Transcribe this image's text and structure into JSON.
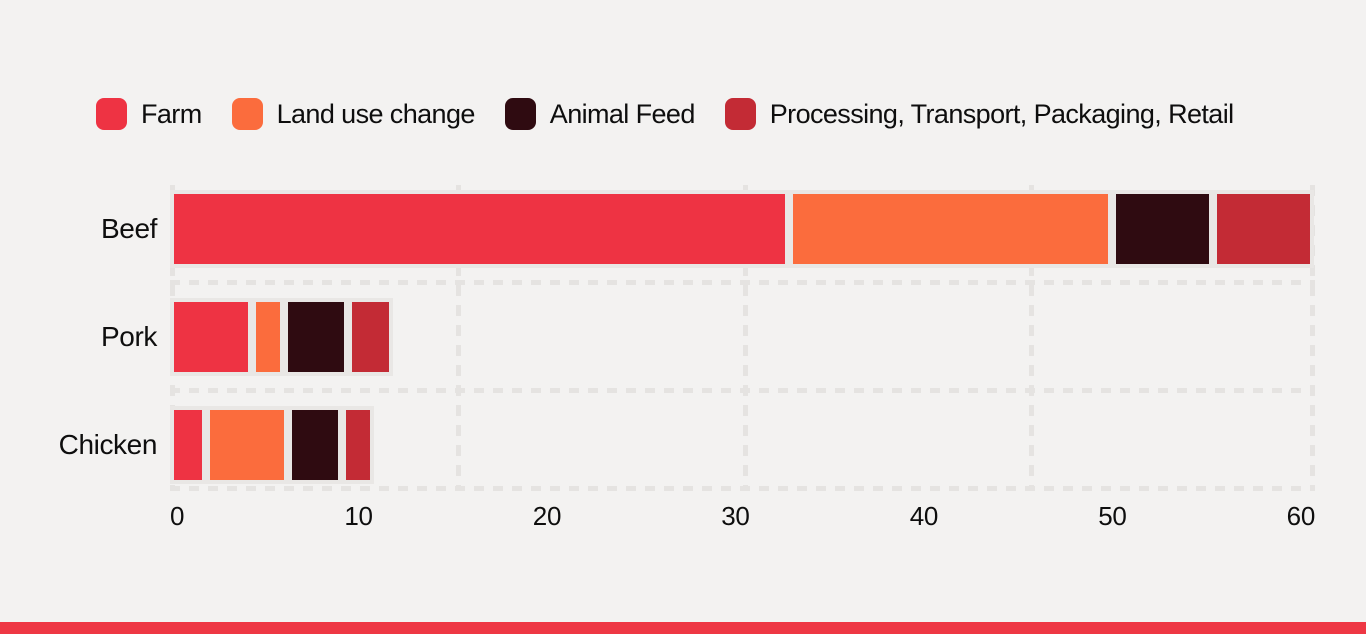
{
  "colors": {
    "background": "#F3F2F1",
    "bar_track": "#E9E7E5",
    "gridline": "#E5E3E1",
    "text": "#0E0E0E",
    "bottom_stripe": "#EE3744"
  },
  "legend": {
    "items": [
      {
        "label": "Farm",
        "color": "#EE3343"
      },
      {
        "label": "Land use change",
        "color": "#FB6C3D"
      },
      {
        "label": "Animal Feed",
        "color": "#2F0B11"
      },
      {
        "label": "Processing, Transport, Packaging, Retail",
        "color": "#C32B35"
      }
    ]
  },
  "chart_data": {
    "type": "bar",
    "orientation": "horizontal",
    "stacked": true,
    "title": "",
    "xlabel": "",
    "ylabel": "",
    "categories": [
      "Beef",
      "Pork",
      "Chicken"
    ],
    "series": [
      {
        "name": "Farm",
        "color": "#EE3343",
        "values": [
          33,
          4,
          1.5
        ]
      },
      {
        "name": "Land use change",
        "color": "#FB6C3D",
        "values": [
          17,
          1.3,
          4
        ]
      },
      {
        "name": "Animal Feed",
        "color": "#2F0B11",
        "values": [
          5,
          3,
          2.5
        ]
      },
      {
        "name": "Processing, Transport, Packaging, Retail",
        "color": "#C32B35",
        "values": [
          5,
          2,
          1.3
        ]
      }
    ],
    "totals": [
      60,
      10.3,
      9.3
    ],
    "x_ticks": [
      "0",
      "10",
      "20",
      "30",
      "40",
      "50",
      "60"
    ],
    "xlim": [
      0,
      60
    ],
    "grid": "dashed, vertical lines at quarter widths, horizontal lines between rows",
    "legend_position": "top"
  }
}
